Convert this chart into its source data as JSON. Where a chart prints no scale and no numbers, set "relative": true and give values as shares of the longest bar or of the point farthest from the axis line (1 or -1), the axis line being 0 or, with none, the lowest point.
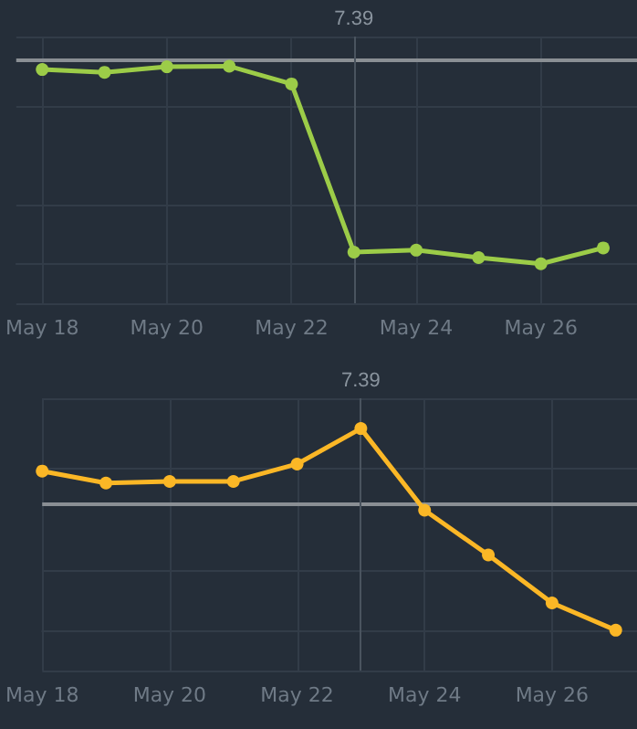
{
  "chart_data": [
    {
      "type": "line",
      "relative": true,
      "x": [
        "--05-18",
        "--05-19",
        "--05-20",
        "--05-21",
        "--05-22",
        "--05-23",
        "--05-24",
        "--05-25",
        "--05-26",
        "--05-27"
      ],
      "series": [
        {
          "color": "#9ccc48",
          "values": [
            0.983,
            0.969,
            0.997,
            1,
            0.91,
            0.059,
            0.069,
            0.031,
            0,
            0.08
          ]
        }
      ],
      "xlim": [
        "--05-17T14:00",
        "--05-27T13:00"
      ],
      "xticks": [
        {
          "value": "--05-18",
          "label": "May 18"
        },
        {
          "value": "--05-20",
          "label": "May 20"
        },
        {
          "value": "--05-22",
          "label": "May 22"
        },
        {
          "value": "--05-24",
          "label": "May 24"
        },
        {
          "value": "--05-26",
          "label": "May 26"
        }
      ],
      "ref_lines": [
        {
          "axis": "y",
          "value": 1.03,
          "color": "#8a8f94"
        },
        {
          "axis": "x",
          "value": "--05-23",
          "label": "7.39",
          "color": "#4a545f"
        }
      ],
      "grid": true,
      "marker": "circle",
      "line_style": "solid"
    },
    {
      "type": "line",
      "relative": true,
      "x": [
        "--05-18",
        "--05-19",
        "--05-20",
        "--05-21",
        "--05-22",
        "--05-23",
        "--05-24",
        "--05-25",
        "--05-26",
        "--05-27"
      ],
      "series": [
        {
          "color": "#fbb726",
          "values": [
            0.789,
            0.73,
            0.738,
            0.738,
            0.824,
            1,
            0.595,
            0.373,
            0.135,
            0
          ]
        }
      ],
      "xlim": [
        "--05-18",
        "--05-27T08:00"
      ],
      "xticks": [
        {
          "value": "--05-18",
          "label": "May 18"
        },
        {
          "value": "--05-20",
          "label": "May 20"
        },
        {
          "value": "--05-22",
          "label": "May 22"
        },
        {
          "value": "--05-24",
          "label": "May 24"
        },
        {
          "value": "--05-26",
          "label": "May 26"
        }
      ],
      "ref_lines": [
        {
          "axis": "y",
          "value": 0.627,
          "color": "#8a8f94"
        },
        {
          "axis": "x",
          "value": "--05-23",
          "label": "7.39",
          "color": "#4a545f"
        }
      ],
      "grid": true,
      "marker": "circle",
      "line_style": "solid"
    }
  ]
}
